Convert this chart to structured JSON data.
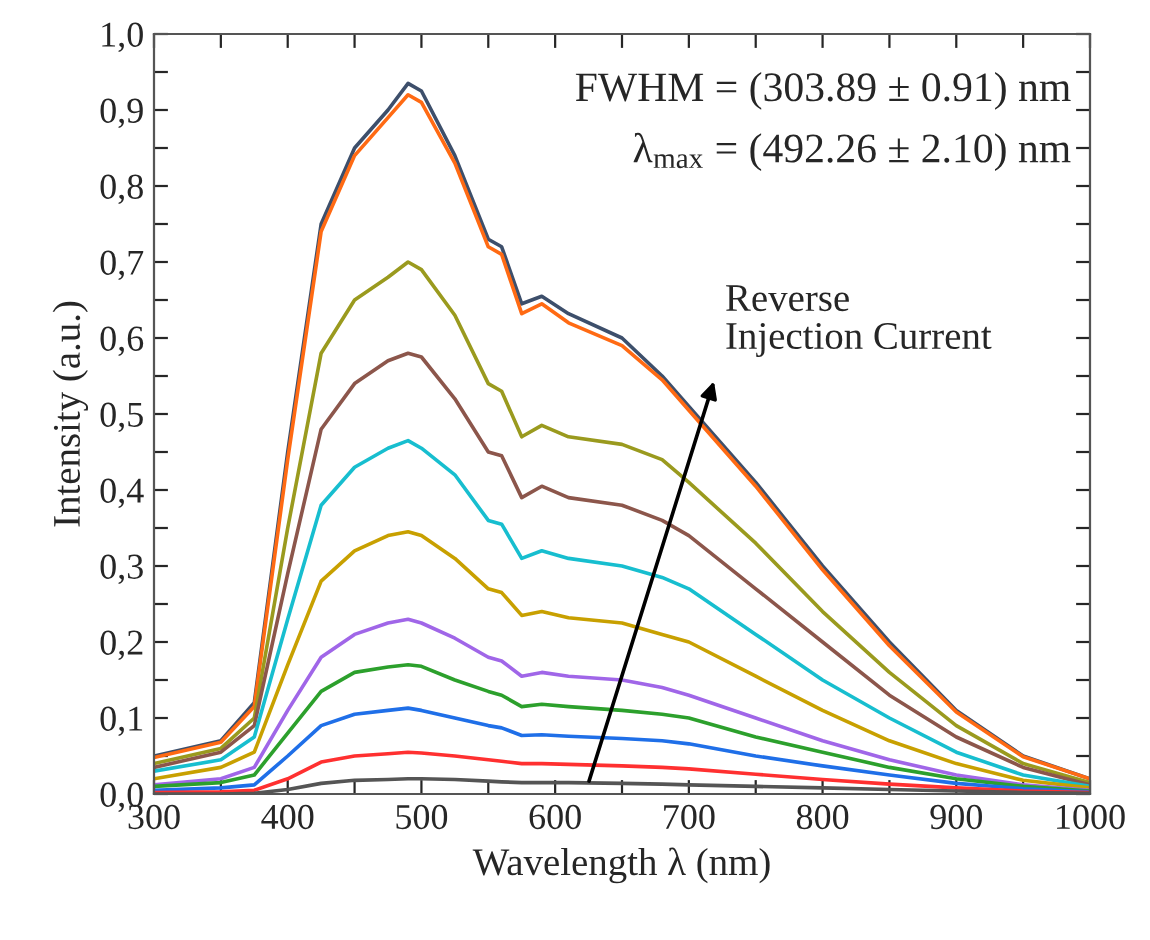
{
  "chart_data": {
    "type": "line",
    "xlabel": "Wavelength λ (nm)",
    "ylabel": "Intensity (a.u.)",
    "x": [
      300,
      350,
      375,
      400,
      425,
      450,
      475,
      490,
      500,
      525,
      550,
      560,
      575,
      590,
      610,
      650,
      680,
      700,
      750,
      800,
      850,
      900,
      950,
      1000
    ],
    "series": [
      {
        "color": "#3d4f6b",
        "values": [
          0.05,
          0.07,
          0.12,
          0.45,
          0.75,
          0.85,
          0.9,
          0.935,
          0.925,
          0.84,
          0.73,
          0.72,
          0.645,
          0.655,
          0.632,
          0.6,
          0.55,
          0.51,
          0.41,
          0.3,
          0.2,
          0.11,
          0.05,
          0.02
        ]
      },
      {
        "color": "#ff6a13",
        "values": [
          0.048,
          0.068,
          0.115,
          0.44,
          0.74,
          0.84,
          0.89,
          0.92,
          0.91,
          0.83,
          0.72,
          0.71,
          0.632,
          0.645,
          0.62,
          0.59,
          0.545,
          0.505,
          0.405,
          0.295,
          0.195,
          0.108,
          0.049,
          0.02
        ]
      },
      {
        "color": "#9a9a1e",
        "values": [
          0.04,
          0.06,
          0.1,
          0.35,
          0.58,
          0.65,
          0.68,
          0.7,
          0.69,
          0.63,
          0.54,
          0.53,
          0.47,
          0.485,
          0.47,
          0.46,
          0.44,
          0.41,
          0.33,
          0.24,
          0.16,
          0.09,
          0.04,
          0.015
        ]
      },
      {
        "color": "#8c564b",
        "values": [
          0.035,
          0.055,
          0.09,
          0.29,
          0.48,
          0.54,
          0.57,
          0.58,
          0.575,
          0.52,
          0.45,
          0.445,
          0.39,
          0.405,
          0.39,
          0.38,
          0.36,
          0.34,
          0.27,
          0.2,
          0.13,
          0.075,
          0.035,
          0.012
        ]
      },
      {
        "color": "#17becf",
        "values": [
          0.03,
          0.045,
          0.075,
          0.23,
          0.38,
          0.43,
          0.455,
          0.465,
          0.455,
          0.42,
          0.36,
          0.355,
          0.31,
          0.32,
          0.31,
          0.3,
          0.285,
          0.27,
          0.21,
          0.15,
          0.1,
          0.055,
          0.025,
          0.01
        ]
      },
      {
        "color": "#c8a000",
        "values": [
          0.02,
          0.035,
          0.055,
          0.17,
          0.28,
          0.32,
          0.34,
          0.345,
          0.34,
          0.31,
          0.27,
          0.265,
          0.235,
          0.24,
          0.232,
          0.225,
          0.21,
          0.2,
          0.155,
          0.11,
          0.07,
          0.04,
          0.018,
          0.008
        ]
      },
      {
        "color": "#a066e8",
        "values": [
          0.012,
          0.02,
          0.035,
          0.11,
          0.18,
          0.21,
          0.225,
          0.23,
          0.225,
          0.205,
          0.18,
          0.175,
          0.155,
          0.16,
          0.155,
          0.15,
          0.14,
          0.13,
          0.1,
          0.07,
          0.045,
          0.025,
          0.012,
          0.005
        ]
      },
      {
        "color": "#2ca02c",
        "values": [
          0.01,
          0.015,
          0.025,
          0.08,
          0.135,
          0.16,
          0.167,
          0.17,
          0.168,
          0.15,
          0.135,
          0.13,
          0.115,
          0.118,
          0.115,
          0.11,
          0.105,
          0.1,
          0.075,
          0.055,
          0.035,
          0.02,
          0.01,
          0.004
        ]
      },
      {
        "color": "#1f6fe8",
        "values": [
          0.005,
          0.008,
          0.012,
          0.05,
          0.09,
          0.105,
          0.11,
          0.113,
          0.11,
          0.1,
          0.09,
          0.087,
          0.077,
          0.078,
          0.076,
          0.073,
          0.07,
          0.066,
          0.05,
          0.037,
          0.025,
          0.014,
          0.007,
          0.003
        ]
      },
      {
        "color": "#ff3030",
        "values": [
          0.002,
          0.003,
          0.005,
          0.02,
          0.042,
          0.05,
          0.053,
          0.055,
          0.054,
          0.05,
          0.045,
          0.043,
          0.04,
          0.04,
          0.039,
          0.037,
          0.035,
          0.033,
          0.026,
          0.019,
          0.013,
          0.008,
          0.004,
          0.002
        ]
      },
      {
        "color": "#555555",
        "values": [
          0.0,
          0.0,
          0.001,
          0.006,
          0.014,
          0.018,
          0.019,
          0.02,
          0.02,
          0.019,
          0.017,
          0.016,
          0.015,
          0.015,
          0.015,
          0.014,
          0.013,
          0.012,
          0.01,
          0.008,
          0.006,
          0.004,
          0.002,
          0.001
        ]
      }
    ],
    "xlim": [
      300,
      1000
    ],
    "xticks": [
      300,
      {
        "value": 350,
        "label": null
      },
      400,
      {
        "value": 450,
        "label": null
      },
      500,
      {
        "value": 550,
        "label": null
      },
      600,
      {
        "value": 650,
        "label": null
      },
      700,
      {
        "value": 750,
        "label": null
      },
      800,
      {
        "value": 850,
        "label": null
      },
      900,
      {
        "value": 950,
        "label": null
      },
      1000
    ],
    "ylim": [
      0,
      1.0
    ],
    "yticks": [
      {
        "value": 0,
        "label": "0,0"
      },
      {
        "value": 0.05,
        "label": null
      },
      {
        "value": 0.1,
        "label": "0,1"
      },
      {
        "value": 0.15,
        "label": null
      },
      {
        "value": 0.2,
        "label": "0,2"
      },
      {
        "value": 0.25,
        "label": null
      },
      {
        "value": 0.3,
        "label": "0,3"
      },
      {
        "value": 0.35,
        "label": null
      },
      {
        "value": 0.4,
        "label": "0,4"
      },
      {
        "value": 0.45,
        "label": null
      },
      {
        "value": 0.5,
        "label": "0,5"
      },
      {
        "value": 0.55,
        "label": null
      },
      {
        "value": 0.6,
        "label": "0,6"
      },
      {
        "value": 0.65,
        "label": null
      },
      {
        "value": 0.7,
        "label": "0,7"
      },
      {
        "value": 0.75,
        "label": null
      },
      {
        "value": 0.8,
        "label": "0,8"
      },
      {
        "value": 0.85,
        "label": null
      },
      {
        "value": 0.9,
        "label": "0,9"
      },
      {
        "value": 0.95,
        "label": null
      },
      {
        "value": 1.0,
        "label": "1,0"
      }
    ],
    "annotations": [
      "FWHM = (303.89 ± 0.91) nm",
      "λ$_{max}$ = (492.26 ± 2.10) nm",
      "Reverse\nInjection Current"
    ],
    "grid": false,
    "legend": false,
    "marker": "none",
    "line_style": "solid"
  }
}
